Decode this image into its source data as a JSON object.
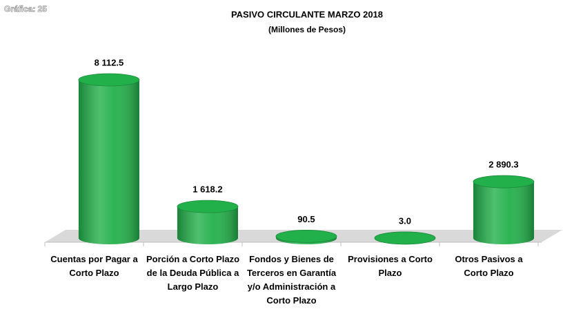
{
  "chart_data": {
    "type": "bar",
    "annotation": "Gráfica: 25",
    "title": "PASIVO CIRCULANTE  MARZO  2018",
    "subtitle": "(Millones de Pesos)",
    "categories": [
      "Cuentas por Pagar a Corto Plazo",
      "Porción a Corto Plazo de la Deuda Pública a Largo Plazo",
      "Fondos y Bienes de Terceros en Garantía y/o Administración a Corto Plazo",
      "Provisiones a Corto Plazo",
      "Otros Pasivos a Corto Plazo"
    ],
    "values": [
      8112.5,
      1618.2,
      90.5,
      3.0,
      2890.3
    ],
    "value_labels": [
      "8 112.5",
      "1 618.2",
      "90.5",
      "3.0",
      "2 890.3"
    ],
    "color": "#22b04a"
  }
}
